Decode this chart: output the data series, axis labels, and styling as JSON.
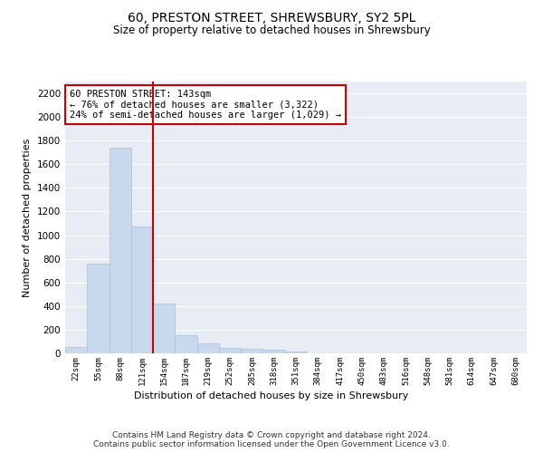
{
  "title": "60, PRESTON STREET, SHREWSBURY, SY2 5PL",
  "subtitle": "Size of property relative to detached houses in Shrewsbury",
  "xlabel": "Distribution of detached houses by size in Shrewsbury",
  "ylabel": "Number of detached properties",
  "categories": [
    "22sqm",
    "55sqm",
    "88sqm",
    "121sqm",
    "154sqm",
    "187sqm",
    "219sqm",
    "252sqm",
    "285sqm",
    "318sqm",
    "351sqm",
    "384sqm",
    "417sqm",
    "450sqm",
    "483sqm",
    "516sqm",
    "548sqm",
    "581sqm",
    "614sqm",
    "647sqm",
    "680sqm"
  ],
  "values": [
    55,
    760,
    1740,
    1075,
    420,
    155,
    85,
    47,
    38,
    28,
    14,
    0,
    0,
    0,
    0,
    0,
    0,
    0,
    0,
    0,
    0
  ],
  "bar_color": "#c8d9ee",
  "bar_edge_color": "#aabfd8",
  "vline_x": 3.5,
  "vline_color": "#cc0000",
  "annotation_text": "60 PRESTON STREET: 143sqm\n← 76% of detached houses are smaller (3,322)\n24% of semi-detached houses are larger (1,029) →",
  "annotation_box_color": "#ffffff",
  "annotation_box_edge": "#cc0000",
  "annotation_fontsize": 7.5,
  "ylim": [
    0,
    2300
  ],
  "yticks": [
    0,
    200,
    400,
    600,
    800,
    1000,
    1200,
    1400,
    1600,
    1800,
    2000,
    2200
  ],
  "background_color": "#e8edf5",
  "grid_color": "#ffffff",
  "footer": "Contains HM Land Registry data © Crown copyright and database right 2024.\nContains public sector information licensed under the Open Government Licence v3.0.",
  "title_fontsize": 10,
  "subtitle_fontsize": 8.5,
  "xlabel_fontsize": 8,
  "ylabel_fontsize": 8,
  "footer_fontsize": 6.5
}
